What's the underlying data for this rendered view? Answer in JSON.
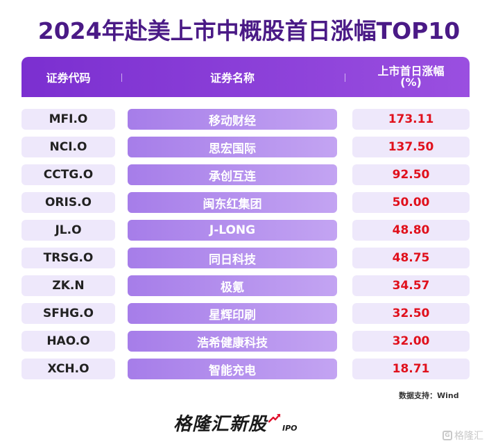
{
  "title": "2024年赴美上市中概股首日涨幅TOP10",
  "headers": {
    "code": "证券代码",
    "name": "证券名称",
    "gain_line1": "上市首日涨幅",
    "gain_line2": "(%)"
  },
  "rows": [
    {
      "code": "MFI.O",
      "name": "移动财经",
      "gain": "173.11"
    },
    {
      "code": "NCI.O",
      "name": "思宏国际",
      "gain": "137.50"
    },
    {
      "code": "CCTG.O",
      "name": "承创互连",
      "gain": "92.50"
    },
    {
      "code": "ORIS.O",
      "name": "闽东红集团",
      "gain": "50.00"
    },
    {
      "code": "JL.O",
      "name": "J-LONG",
      "gain": "48.80"
    },
    {
      "code": "TRSG.O",
      "name": "同日科技",
      "gain": "48.75"
    },
    {
      "code": "ZK.N",
      "name": "极氪",
      "gain": "34.57"
    },
    {
      "code": "SFHG.O",
      "name": "星辉印刷",
      "gain": "32.50"
    },
    {
      "code": "HAO.O",
      "name": "浩希健康科技",
      "gain": "32.00"
    },
    {
      "code": "XCH.O",
      "name": "智能充电",
      "gain": "18.71"
    }
  ],
  "source": "数据支持：Wind",
  "logo": {
    "text": "格隆汇新股",
    "sub": "IPO",
    "icon": "rising-arrow-icon"
  },
  "watermark": {
    "text": "格隆汇",
    "icon_glyph": "G"
  },
  "colors": {
    "title": "#4a1a86",
    "header": "#7b2fd0",
    "name_cell": "#a67de9",
    "light_cell": "#eee8fb",
    "gain_text": "#e0101c",
    "logo_arrow": "#e0102c"
  }
}
